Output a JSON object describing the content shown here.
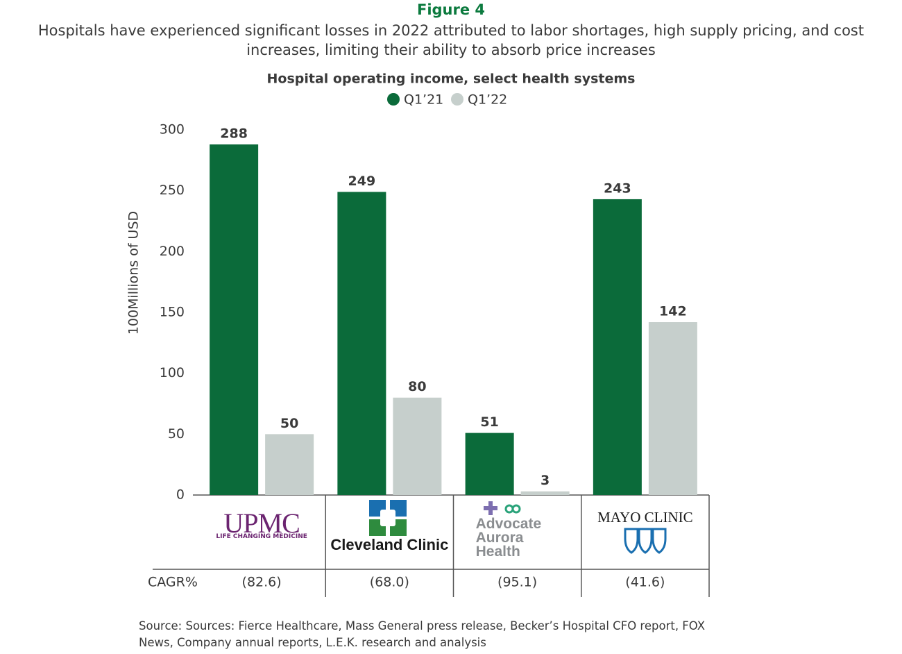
{
  "chart_data": {
    "type": "bar",
    "figure_label": "Figure 4",
    "title": "Hospitals have experienced significant losses in 2022 attributed to labor shortages, high supply pricing, and cost increases, limiting their ability to absorb price increases",
    "subtitle": "Hospital operating income, select health systems",
    "y_label": "100Millions of USD",
    "categories": [
      "UPMC",
      "Cleveland Clinic",
      "Advocate Aurora Health",
      "MAYO CLINIC"
    ],
    "category_taglines": [
      "LIFE CHANGING MEDICINE",
      null,
      null,
      null
    ],
    "series": [
      {
        "name": "Q1’21",
        "color": "#0b6b3a",
        "values": [
          288,
          249,
          51,
          243
        ]
      },
      {
        "name": "Q1’22",
        "color": "#c6cfcc",
        "values": [
          50,
          80,
          3,
          142
        ]
      }
    ],
    "ylim": [
      0,
      300
    ],
    "yticks": [
      0,
      50,
      100,
      150,
      200,
      250,
      300
    ],
    "grid": false,
    "table": {
      "label": "CAGR%",
      "values": [
        "(82.6)",
        "(68.0)",
        "(95.1)",
        "(41.6)"
      ]
    },
    "source": "Source: Sources: Fierce Healthcare, Mass General press release, Becker’s Hospital CFO report, FOX News, Company annual reports, L.E.K. research and analysis"
  }
}
